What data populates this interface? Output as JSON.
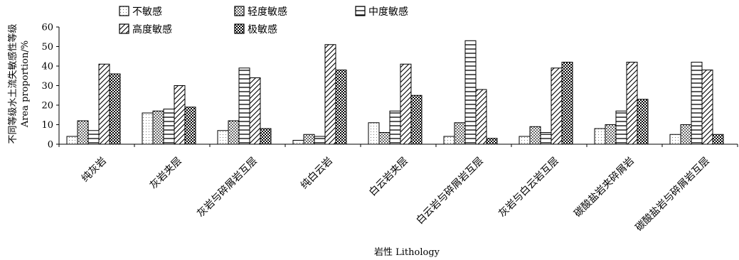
{
  "chart_data": {
    "type": "bar",
    "ylabel_zh": "不同等级水土流失敏感性等级",
    "ylabel_en": "Area proportion/%",
    "xlabel": "岩性 Lithology",
    "ylim": [
      0,
      60
    ],
    "yticks": [
      0,
      10,
      20,
      30,
      40,
      50,
      60
    ],
    "grid": false,
    "legend_position": "top",
    "categories": [
      "纯灰岩",
      "灰岩夹层",
      "灰岩与碎屑岩互层",
      "纯白云岩",
      "白云岩夹层",
      "白云岩与碎屑岩互层",
      "灰岩与白云岩互层",
      "碳酸盐岩夹碎屑岩",
      "碳酸盐岩与碎屑岩互层"
    ],
    "series": [
      {
        "name": "不敏感",
        "pattern": "pat-light",
        "values": [
          4,
          16,
          7,
          2,
          11,
          4,
          4,
          8,
          5
        ]
      },
      {
        "name": "轻度敏感",
        "pattern": "pat-dots",
        "values": [
          12,
          17,
          12,
          5,
          6,
          11,
          9,
          10,
          10
        ]
      },
      {
        "name": "中度敏感",
        "pattern": "pat-hlines",
        "values": [
          7,
          18,
          39,
          4,
          17,
          53,
          6,
          17,
          42
        ]
      },
      {
        "name": "高度敏感",
        "pattern": "pat-diag",
        "values": [
          41,
          30,
          34,
          51,
          41,
          28,
          39,
          42,
          38
        ]
      },
      {
        "name": "极敏感",
        "pattern": "pat-check",
        "values": [
          36,
          19,
          8,
          38,
          25,
          3,
          42,
          23,
          5
        ]
      }
    ]
  }
}
